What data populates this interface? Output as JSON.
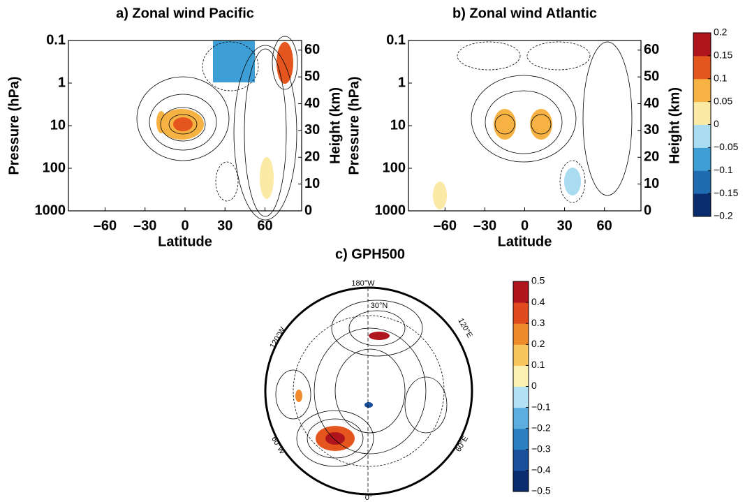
{
  "chart_data": [
    {
      "type": "contour",
      "title": "a) Zonal wind Pacific",
      "xlabel": "Latitude",
      "ylabel": "Pressure (hPa)",
      "y2label": "Height (km)",
      "xlim": [
        -87.5,
        87.5
      ],
      "xticks": [
        {
          "value": -60,
          "label": "–60"
        },
        {
          "value": -30,
          "label": "–30"
        },
        0,
        30,
        60
      ],
      "ylim": [
        1000,
        0.1
      ],
      "yscale": "log",
      "yticks": [
        0.1,
        1,
        10,
        100,
        1000
      ],
      "y2lim": [
        0,
        63.6
      ],
      "y2ticks": [
        0,
        10,
        20,
        30,
        40,
        50,
        60
      ]
    },
    {
      "type": "contour",
      "title": "b) Zonal wind Atlantic",
      "xlabel": "Latitude",
      "ylabel": "Pressure (hPa)",
      "y2label": "Height (km)",
      "xlim": [
        -87.5,
        87.5
      ],
      "xticks": [
        {
          "value": -60,
          "label": "–60"
        },
        {
          "value": -30,
          "label": "–30"
        },
        0,
        30,
        60
      ],
      "ylim": [
        1000,
        0.1
      ],
      "yscale": "log",
      "yticks": [
        0.1,
        1,
        10,
        100,
        1000
      ],
      "y2lim": [
        0,
        63.6
      ],
      "y2ticks": [
        0,
        10,
        20,
        30,
        40,
        50,
        60
      ]
    },
    {
      "type": "polar-map",
      "title": "c) GPH500",
      "map_labels": [
        "180°W",
        "30°N",
        "120°W",
        "120°E",
        "60°W",
        "60°E",
        "0°"
      ]
    }
  ],
  "colorbars": [
    {
      "lim": [
        -0.2,
        0.2
      ],
      "ticks": [
        {
          "value": 0.2,
          "label": "0.2"
        },
        0.15,
        0.1,
        0.05,
        0,
        {
          "value": -0.05,
          "label": "−0.05"
        },
        {
          "value": -0.1,
          "label": "−0.1"
        },
        {
          "value": -0.15,
          "label": "−0.15"
        },
        {
          "value": -0.2,
          "label": "−0.2"
        }
      ],
      "colors": [
        "#0b2c6e",
        "#1f6cb1",
        "#3d9fd6",
        "#aadcf1",
        "#fbeaa6",
        "#f6b243",
        "#e4561d",
        "#b0141d"
      ]
    },
    {
      "lim": [
        -0.5,
        0.5
      ],
      "ticks": [
        0.5,
        0.4,
        0.3,
        0.2,
        0.1,
        0,
        {
          "value": -0.1,
          "label": "−0.1"
        },
        {
          "value": -0.2,
          "label": "−0.2"
        },
        {
          "value": -0.3,
          "label": "−0.3"
        },
        {
          "value": -0.4,
          "label": "−0.4"
        },
        {
          "value": -0.5,
          "label": "−0.5"
        }
      ],
      "colors": [
        "#0b2c6e",
        "#1a509b",
        "#2a80c1",
        "#5caee0",
        "#b2e1f3",
        "#fdf1b2",
        "#f8c55b",
        "#ef8b2b",
        "#e04b1e",
        "#b0141d"
      ]
    }
  ]
}
